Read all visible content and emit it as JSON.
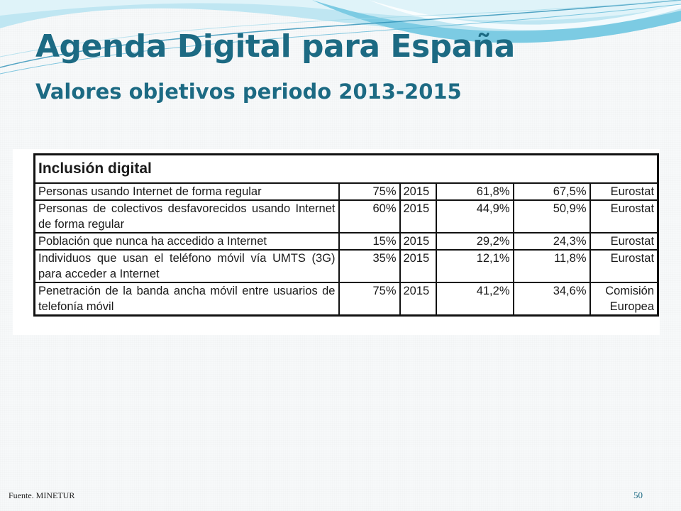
{
  "slide": {
    "title": "Agenda Digital para España",
    "subtitle": "Valores objetivos periodo 2013-2015",
    "footer_source": "Fuente. MINETUR",
    "page_number": "50"
  },
  "table": {
    "heading": "Inclusión digital",
    "rows": [
      {
        "desc": "Personas usando Internet de forma regular",
        "target": "75%",
        "year": "2015",
        "v1": "61,8%",
        "v2": "67,5%",
        "source": "Eurostat"
      },
      {
        "desc": "Personas de colectivos desfavorecidos usando Internet de forma regular",
        "target": "60%",
        "year": "2015",
        "v1": "44,9%",
        "v2": "50,9%",
        "source": "Eurostat"
      },
      {
        "desc": "Población que nunca ha accedido a Internet",
        "target": "15%",
        "year": "2015",
        "v1": "29,2%",
        "v2": "24,3%",
        "source": "Eurostat"
      },
      {
        "desc": "Individuos que usan el teléfono móvil vía UMTS (3G) para acceder a Internet",
        "target": "35%",
        "year": "2015",
        "v1": "12,1%",
        "v2": "11,8%",
        "source": "Eurostat"
      },
      {
        "desc": "Penetración de la banda ancha móvil entre usuarios de telefonía móvil",
        "target": "75%",
        "year": "2015",
        "v1": "41,2%",
        "v2": "34,6%",
        "source": "Comisión Europea"
      }
    ]
  },
  "colors": {
    "title": "#1c6a83",
    "wave_light": "#bfe6f2",
    "wave_mid": "#7ccbe3",
    "wave_dark": "#2b8fb5"
  }
}
